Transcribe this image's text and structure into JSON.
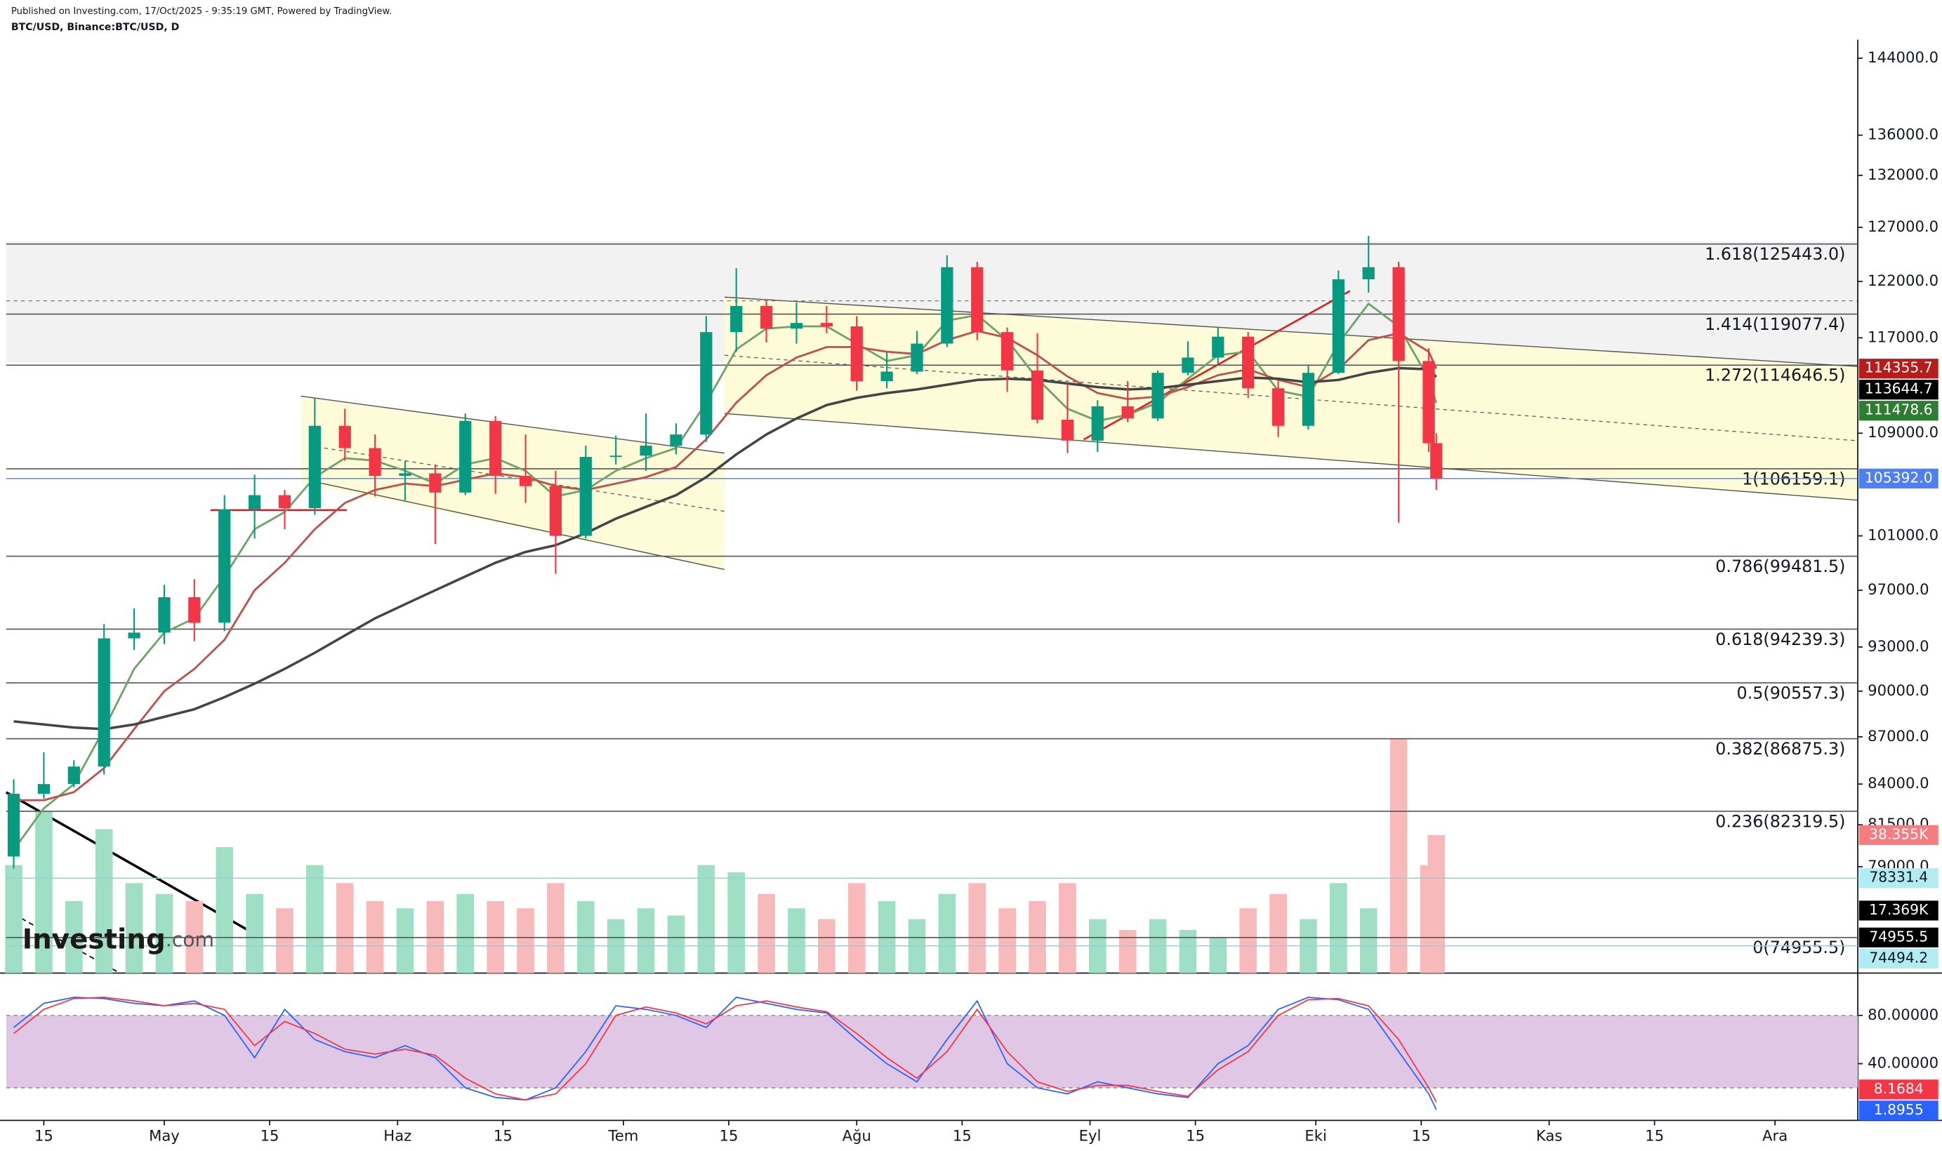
{
  "header": {
    "published": "Published on Investing.com, 17/Oct/2025 - 9:35:19 GMT, Powered by TradingView.",
    "symbol": "BTC/USD, Binance:BTC/USD, D"
  },
  "logo": {
    "name": "Investing",
    "suffix": ".com"
  },
  "chart_data": [
    {
      "type": "candlestick",
      "log_scale": true,
      "x": [
        10,
        14,
        18,
        22,
        26,
        30,
        34,
        38,
        42,
        46,
        50,
        54,
        58,
        62,
        66,
        70,
        74,
        78,
        82,
        86,
        90,
        94,
        98,
        102,
        106,
        110,
        114,
        118,
        122,
        126,
        130,
        134,
        138,
        142,
        146,
        150,
        154,
        158,
        162,
        166,
        170,
        174,
        178,
        182,
        186,
        190,
        194,
        198,
        199
      ],
      "open": [
        79600,
        83400,
        84000,
        85100,
        93600,
        94000,
        96500,
        94700,
        103000,
        104100,
        103100,
        109600,
        107800,
        105600,
        105800,
        104300,
        110000,
        105600,
        104800,
        101000,
        107100,
        107200,
        108000,
        108900,
        117500,
        119800,
        117800,
        118300,
        118000,
        113300,
        114100,
        116500,
        123300,
        117500,
        114200,
        110100,
        108400,
        111200,
        110200,
        114000,
        115300,
        117100,
        112700,
        109600,
        114000,
        122200,
        123300,
        115000,
        108200
      ],
      "high": [
        84300,
        86000,
        85500,
        94600,
        95700,
        97400,
        97800,
        104100,
        105700,
        104500,
        111900,
        111000,
        108900,
        106800,
        106500,
        110600,
        110400,
        108900,
        106000,
        108000,
        108800,
        110600,
        109800,
        118900,
        123200,
        120200,
        120100,
        119800,
        118900,
        115800,
        117600,
        124400,
        123800,
        117900,
        117400,
        113100,
        111700,
        113300,
        114200,
        116700,
        117900,
        117500,
        113300,
        114600,
        123000,
        126200,
        123800,
        116100,
        109000
      ],
      "low": [
        78900,
        83100,
        83800,
        84600,
        92800,
        93200,
        93400,
        94100,
        100800,
        101500,
        102600,
        106800,
        104000,
        103700,
        100400,
        104100,
        104200,
        103500,
        98200,
        100800,
        106500,
        106000,
        107300,
        108300,
        115800,
        116600,
        116500,
        117400,
        112500,
        112700,
        113900,
        116200,
        116800,
        112400,
        109800,
        107400,
        107500,
        109900,
        110000,
        113800,
        114800,
        111900,
        108700,
        109300,
        113900,
        121000,
        102000,
        107500,
        104500
      ],
      "close": [
        83400,
        84000,
        85100,
        93600,
        94000,
        96500,
        94700,
        103000,
        104100,
        103100,
        109600,
        107800,
        105600,
        105800,
        104300,
        110000,
        105600,
        104800,
        101000,
        107100,
        107200,
        108000,
        108900,
        117500,
        119800,
        117800,
        118300,
        118000,
        113300,
        114100,
        116500,
        123300,
        117500,
        114200,
        110100,
        108400,
        111200,
        110200,
        114000,
        115300,
        117100,
        112700,
        109600,
        114000,
        122200,
        123300,
        115000,
        108200,
        105392
      ],
      "up_color": "#089981",
      "down_color": "#f23645",
      "series": [
        {
          "color": "#6fa36b",
          "values": [
            80000,
            82500,
            84000,
            87500,
            91500,
            94000,
            95000,
            98000,
            101500,
            102800,
            105500,
            107000,
            106800,
            106000,
            105000,
            106500,
            107000,
            106000,
            104000,
            104500,
            106000,
            107000,
            107800,
            111500,
            116000,
            117800,
            118000,
            118000,
            116500,
            115000,
            115500,
            118500,
            119000,
            116800,
            113500,
            111000,
            110000,
            110500,
            111500,
            113500,
            115500,
            115800,
            112500,
            112000,
            116500,
            120000,
            118000,
            113500,
            111478.6
          ]
        },
        {
          "color": "#c0504d",
          "values": [
            83000,
            83000,
            83500,
            85000,
            87500,
            90000,
            91500,
            93500,
            97000,
            99000,
            101500,
            103500,
            104500,
            105000,
            104800,
            105300,
            105800,
            105500,
            104800,
            104500,
            105000,
            105500,
            106300,
            108500,
            111500,
            113800,
            115300,
            116200,
            116200,
            115800,
            115600,
            116800,
            117600,
            117000,
            115500,
            113700,
            112300,
            111800,
            112000,
            112800,
            113800,
            114300,
            113400,
            112800,
            114300,
            116800,
            117400,
            115800,
            114355.7
          ]
        },
        {
          "color": "#444444",
          "values": [
            88000,
            87800,
            87600,
            87500,
            87800,
            88300,
            88800,
            89600,
            90500,
            91500,
            92600,
            93800,
            95000,
            96000,
            97000,
            98000,
            99000,
            99800,
            100300,
            101200,
            102300,
            103200,
            104100,
            105500,
            107300,
            108900,
            110200,
            111300,
            111900,
            112300,
            112600,
            113000,
            113400,
            113500,
            113400,
            113100,
            112800,
            112600,
            112700,
            113000,
            113300,
            113600,
            113500,
            113200,
            113400,
            114000,
            114400,
            114300,
            113644.7
          ]
        }
      ],
      "volume": {
        "values": [
          30000,
          45000,
          20000,
          40000,
          25000,
          22000,
          20000,
          35000,
          22000,
          18000,
          30000,
          25000,
          20000,
          18000,
          20000,
          22000,
          20000,
          18000,
          25000,
          20000,
          15000,
          18000,
          16000,
          30000,
          28000,
          22000,
          18000,
          15000,
          25000,
          20000,
          15000,
          22000,
          25000,
          18000,
          20000,
          25000,
          15000,
          12000,
          15000,
          12000,
          10000,
          18000,
          22000,
          15000,
          25000,
          18000,
          65000,
          30000,
          38355
        ],
        "vlim": [
          0,
          80000
        ],
        "up_color": "#9fdfc6",
        "down_color": "#f8b9bb",
        "labels": [
          {
            "value": 38355,
            "label": "38.355K",
            "color": "#f77c80",
            "text_color": "#ffffff"
          },
          {
            "value": 17369,
            "label": "17.369K",
            "color": "#000000",
            "text_color": "#ffffff"
          }
        ]
      },
      "xlim": [
        9,
        255
      ],
      "xticks": [
        {
          "value": 14,
          "label": "15"
        },
        {
          "value": 30,
          "label": "May"
        },
        {
          "value": 44,
          "label": "15"
        },
        {
          "value": 61,
          "label": "Haz"
        },
        {
          "value": 75,
          "label": "15"
        },
        {
          "value": 91,
          "label": "Tem"
        },
        {
          "value": 105,
          "label": "15"
        },
        {
          "value": 122,
          "label": "Ağu"
        },
        {
          "value": 136,
          "label": "15"
        },
        {
          "value": 153,
          "label": "Eyl"
        },
        {
          "value": 167,
          "label": "15"
        },
        {
          "value": 183,
          "label": "Eki"
        },
        {
          "value": 197,
          "label": "15"
        },
        {
          "value": 214,
          "label": "Kas"
        },
        {
          "value": 228,
          "label": "15"
        },
        {
          "value": 244,
          "label": "Ara"
        }
      ],
      "ylim": [
        73000,
        146000
      ],
      "yticks": [
        {
          "value": 144000,
          "label": "144000.0"
        },
        {
          "value": 136000,
          "label": "136000.0"
        },
        {
          "value": 132000,
          "label": "132000.0"
        },
        {
          "value": 127000,
          "label": "127000.0"
        },
        {
          "value": 122000,
          "label": "122000.0"
        },
        {
          "value": 117000,
          "label": "117000.0"
        },
        {
          "value": 109000,
          "label": "109000.0"
        },
        {
          "value": 101000,
          "label": "101000.0"
        },
        {
          "value": 97000,
          "label": "97000.0"
        },
        {
          "value": 93000,
          "label": "93000.0"
        },
        {
          "value": 90000,
          "label": "90000.0"
        },
        {
          "value": 87000,
          "label": "87000.0"
        },
        {
          "value": 84000,
          "label": "84000.0"
        },
        {
          "value": 81500,
          "label": "81500.0"
        },
        {
          "value": 79000,
          "label": "79000.0"
        }
      ],
      "fib": [
        {
          "value": 125443,
          "label": "1.618(125443.0)"
        },
        {
          "value": 119077.4,
          "label": "1.414(119077.4)"
        },
        {
          "value": 114646.5,
          "label": "1.272(114646.5)"
        },
        {
          "value": 106159.1,
          "label": "1(106159.1)"
        },
        {
          "value": 99481.5,
          "label": "0.786(99481.5)"
        },
        {
          "value": 94239.3,
          "label": "0.618(94239.3)"
        },
        {
          "value": 90557.3,
          "label": "0.5(90557.3)"
        },
        {
          "value": 86875.3,
          "label": "0.382(86875.3)"
        },
        {
          "value": 82319.5,
          "label": "0.236(82319.5)"
        },
        {
          "value": 74955.5,
          "label": "0(74955.5)"
        }
      ],
      "price_labels": [
        {
          "value": 114355.7,
          "color": "#b71c1c",
          "text_color": "#ffffff"
        },
        {
          "value": 113644.7,
          "color": "#000000",
          "text_color": "#ffffff"
        },
        {
          "value": 111478.6,
          "color": "#2e7d32",
          "text_color": "#ffffff"
        },
        {
          "value": 105392,
          "label": "105392.0",
          "color": "#4f7ff0",
          "text_color": "#ffffff",
          "line": true
        },
        {
          "value": 78331.4,
          "color": "#b2ebf2",
          "text_color": "#131722",
          "line": true
        },
        {
          "value": 74955.5,
          "color": "#000000",
          "text_color": "#ffffff"
        },
        {
          "value": 74494.2,
          "color": "#b2ebf2",
          "text_color": "#131722",
          "line": true
        }
      ]
    },
    {
      "type": "line",
      "x": [
        10,
        14,
        18,
        22,
        26,
        30,
        34,
        38,
        42,
        46,
        50,
        54,
        58,
        62,
        66,
        70,
        74,
        78,
        82,
        86,
        90,
        94,
        98,
        102,
        106,
        110,
        114,
        118,
        122,
        126,
        130,
        134,
        138,
        142,
        146,
        150,
        154,
        158,
        162,
        166,
        170,
        174,
        178,
        182,
        186,
        190,
        194,
        198,
        199
      ],
      "xlim": [
        9,
        255
      ],
      "series": [
        {
          "color": "#2962ff",
          "values": [
            70,
            90,
            95,
            94,
            90,
            88,
            92,
            80,
            45,
            85,
            60,
            50,
            45,
            55,
            45,
            20,
            12,
            10,
            20,
            50,
            88,
            85,
            80,
            70,
            95,
            90,
            85,
            82,
            60,
            40,
            25,
            60,
            92,
            40,
            20,
            15,
            25,
            20,
            15,
            12,
            40,
            55,
            85,
            95,
            93,
            85,
            50,
            15,
            1.8955
          ]
        },
        {
          "color": "#f23645",
          "values": [
            65,
            85,
            94,
            95,
            92,
            88,
            90,
            85,
            55,
            75,
            65,
            52,
            48,
            52,
            47,
            28,
            15,
            10,
            15,
            40,
            80,
            87,
            82,
            73,
            88,
            92,
            87,
            83,
            65,
            45,
            28,
            50,
            85,
            50,
            25,
            17,
            22,
            22,
            17,
            13,
            35,
            50,
            80,
            93,
            94,
            88,
            60,
            20,
            8.1684
          ]
        }
      ],
      "ylim": [
        -7,
        113
      ],
      "yticks": [
        {
          "value": 80,
          "label": "80.00000"
        },
        {
          "value": 40,
          "label": "40.00000"
        }
      ],
      "band": [
        20,
        80
      ],
      "band_color": "#e1c7e6",
      "price_labels": [
        {
          "value": 8.1684,
          "color": "#f23645",
          "text_color": "#ffffff"
        },
        {
          "value": 1.8955,
          "color": "#2962ff",
          "text_color": "#ffffff"
        }
      ]
    }
  ]
}
